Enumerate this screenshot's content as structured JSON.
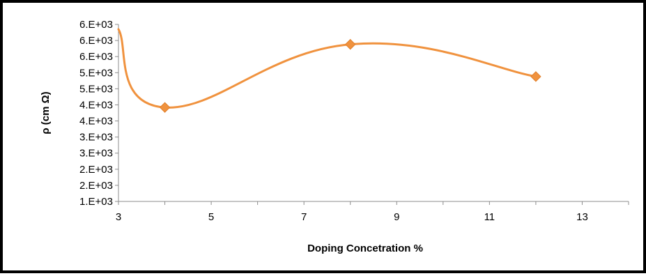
{
  "chart_data": {
    "type": "line",
    "title": "",
    "xlabel": "Doping Concetration %",
    "ylabel": "ρ (cm Ω)",
    "xlim": [
      3,
      14
    ],
    "ylim": [
      1000,
      6500
    ],
    "x_ticks": [
      3,
      5,
      7,
      9,
      11,
      13
    ],
    "x_tick_labels": [
      "3",
      "5",
      "7",
      "9",
      "11",
      "13"
    ],
    "y_ticks": [
      1000,
      1500,
      2000,
      2500,
      3000,
      3500,
      4000,
      4500,
      5000,
      5500,
      6000,
      6500
    ],
    "y_tick_labels": [
      "1.E+03",
      "2.E+03",
      "2.E+03",
      "3.E+03",
      "3.E+03",
      "4.E+03",
      "4.E+03",
      "5.E+03",
      "5.E+03",
      "6.E+03",
      "6.E+03",
      "6.E+03"
    ],
    "grid": false,
    "legend": "none",
    "smooth": true,
    "series": [
      {
        "x": [
          3,
          4,
          8,
          12
        ],
        "y": [
          6350,
          3920,
          5880,
          4880
        ],
        "color": "#f0923e",
        "marker": "diamond"
      }
    ]
  }
}
